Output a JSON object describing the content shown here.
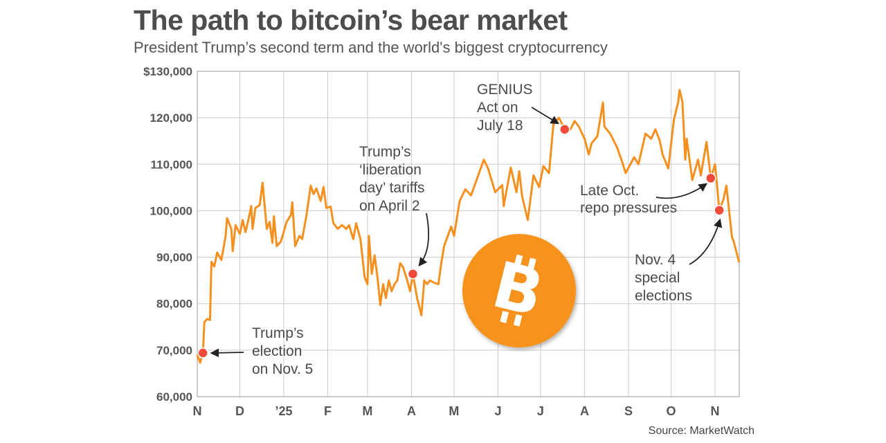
{
  "title": "The path to bitcoin’s bear market",
  "subtitle": "President Trump’s second term and the world's biggest cryptocurrency",
  "source": "Source: MarketWatch",
  "colors": {
    "line": "#f5901e",
    "marker": "#f04a3a",
    "grid": "#cccccc",
    "logo": "#f7931a"
  },
  "logo": {
    "icon": "bitcoin-logo-icon",
    "symbol": "B"
  },
  "chart_data": {
    "type": "line",
    "title": "The path to bitcoin’s bear market",
    "subtitle": "President Trump’s second term and the world's biggest cryptocurrency",
    "xlabel": "",
    "ylabel": "",
    "ylim": [
      60000,
      130000
    ],
    "xlim": [
      "2024-11-01",
      "2025-11-18"
    ],
    "grid": true,
    "y_ticks": [
      "$130,000",
      "120,000",
      "110,000",
      "100,000",
      "90,000",
      "80,000",
      "70,000",
      "60,000"
    ],
    "y_tick_values": [
      130000,
      120000,
      110000,
      100000,
      90000,
      80000,
      70000,
      60000
    ],
    "x_ticks": [
      "N",
      "D",
      "’25",
      "F",
      "M",
      "A",
      "M",
      "J",
      "J",
      "A",
      "S",
      "O",
      "N"
    ],
    "x_tick_dates": [
      "2024-11-01",
      "2024-12-01",
      "2025-01-01",
      "2025-02-01",
      "2025-03-01",
      "2025-04-01",
      "2025-05-01",
      "2025-06-01",
      "2025-07-01",
      "2025-08-01",
      "2025-09-01",
      "2025-10-01",
      "2025-11-01"
    ],
    "series": [
      {
        "points": [
          [
            "2024-11-01",
            69000
          ],
          [
            "2024-11-03",
            67300
          ],
          [
            "2024-11-05",
            69400
          ],
          [
            "2024-11-06",
            76000
          ],
          [
            "2024-11-08",
            76700
          ],
          [
            "2024-11-10",
            76500
          ],
          [
            "2024-11-11",
            89000
          ],
          [
            "2024-11-13",
            88000
          ],
          [
            "2024-11-15",
            91000
          ],
          [
            "2024-11-18",
            89400
          ],
          [
            "2024-11-21",
            94600
          ],
          [
            "2024-11-22",
            98400
          ],
          [
            "2024-11-25",
            96100
          ],
          [
            "2024-11-26",
            91300
          ],
          [
            "2024-11-28",
            96900
          ],
          [
            "2024-12-01",
            95000
          ],
          [
            "2024-12-03",
            98000
          ],
          [
            "2024-12-05",
            95400
          ],
          [
            "2024-12-07",
            98000
          ],
          [
            "2024-12-09",
            101000
          ],
          [
            "2024-12-10",
            96100
          ],
          [
            "2024-12-12",
            100600
          ],
          [
            "2024-12-15",
            101200
          ],
          [
            "2024-12-17",
            106000
          ],
          [
            "2024-12-20",
            96100
          ],
          [
            "2024-12-22",
            97600
          ],
          [
            "2024-12-24",
            93100
          ],
          [
            "2024-12-25",
            98800
          ],
          [
            "2024-12-27",
            92400
          ],
          [
            "2024-12-30",
            93400
          ],
          [
            "2025-01-03",
            97600
          ],
          [
            "2025-01-06",
            99100
          ],
          [
            "2025-01-07",
            101800
          ],
          [
            "2025-01-09",
            92400
          ],
          [
            "2025-01-12",
            94600
          ],
          [
            "2025-01-14",
            93900
          ],
          [
            "2025-01-17",
            99100
          ],
          [
            "2025-01-20",
            105400
          ],
          [
            "2025-01-22",
            103600
          ],
          [
            "2025-01-24",
            104800
          ],
          [
            "2025-01-27",
            102100
          ],
          [
            "2025-01-29",
            105100
          ],
          [
            "2025-01-31",
            100600
          ],
          [
            "2025-02-03",
            100900
          ],
          [
            "2025-02-05",
            97300
          ],
          [
            "2025-02-08",
            96100
          ],
          [
            "2025-02-11",
            96900
          ],
          [
            "2025-02-14",
            96100
          ],
          [
            "2025-02-16",
            96900
          ],
          [
            "2025-02-19",
            93900
          ],
          [
            "2025-02-21",
            97300
          ],
          [
            "2025-02-24",
            93900
          ],
          [
            "2025-02-27",
            85700
          ],
          [
            "2025-03-01",
            84200
          ],
          [
            "2025-03-02",
            94600
          ],
          [
            "2025-03-04",
            86400
          ],
          [
            "2025-03-06",
            90400
          ],
          [
            "2025-03-08",
            85700
          ],
          [
            "2025-03-10",
            79700
          ],
          [
            "2025-03-12",
            84200
          ],
          [
            "2025-03-14",
            81200
          ],
          [
            "2025-03-16",
            85000
          ],
          [
            "2025-03-18",
            82700
          ],
          [
            "2025-03-20",
            84200
          ],
          [
            "2025-03-22",
            85000
          ],
          [
            "2025-03-24",
            88700
          ],
          [
            "2025-03-26",
            87900
          ],
          [
            "2025-03-29",
            85000
          ],
          [
            "2025-03-31",
            82700
          ],
          [
            "2025-04-02",
            86400
          ],
          [
            "2025-04-05",
            81200
          ],
          [
            "2025-04-08",
            77500
          ],
          [
            "2025-04-10",
            85000
          ],
          [
            "2025-04-12",
            84200
          ],
          [
            "2025-04-14",
            85000
          ],
          [
            "2025-04-17",
            84500
          ],
          [
            "2025-04-20",
            84200
          ],
          [
            "2025-04-22",
            88700
          ],
          [
            "2025-04-24",
            92400
          ],
          [
            "2025-04-29",
            96600
          ],
          [
            "2025-05-01",
            94600
          ],
          [
            "2025-05-05",
            102100
          ],
          [
            "2025-05-09",
            104600
          ],
          [
            "2025-05-13",
            103300
          ],
          [
            "2025-05-22",
            111000
          ],
          [
            "2025-05-25",
            109100
          ],
          [
            "2025-05-30",
            104000
          ],
          [
            "2025-06-04",
            105500
          ],
          [
            "2025-06-05",
            101000
          ],
          [
            "2025-06-10",
            109300
          ],
          [
            "2025-06-14",
            104000
          ],
          [
            "2025-06-16",
            108500
          ],
          [
            "2025-06-18",
            103100
          ],
          [
            "2025-06-22",
            98000
          ],
          [
            "2025-06-26",
            107600
          ],
          [
            "2025-06-30",
            105100
          ],
          [
            "2025-07-03",
            109600
          ],
          [
            "2025-07-07",
            108100
          ],
          [
            "2025-07-10",
            118500
          ],
          [
            "2025-07-14",
            120000
          ],
          [
            "2025-07-18",
            117500
          ],
          [
            "2025-07-22",
            117500
          ],
          [
            "2025-07-25",
            119300
          ],
          [
            "2025-07-28",
            118100
          ],
          [
            "2025-08-01",
            115500
          ],
          [
            "2025-08-04",
            112100
          ],
          [
            "2025-08-06",
            114500
          ],
          [
            "2025-08-10",
            116000
          ],
          [
            "2025-08-12",
            119600
          ],
          [
            "2025-08-14",
            123300
          ],
          [
            "2025-08-15",
            118100
          ],
          [
            "2025-08-19",
            116600
          ],
          [
            "2025-08-24",
            113600
          ],
          [
            "2025-08-27",
            111000
          ],
          [
            "2025-08-30",
            108100
          ],
          [
            "2025-09-05",
            111500
          ],
          [
            "2025-09-08",
            110000
          ],
          [
            "2025-09-13",
            116600
          ],
          [
            "2025-09-17",
            115500
          ],
          [
            "2025-09-20",
            117500
          ],
          [
            "2025-09-23",
            115100
          ],
          [
            "2025-09-25",
            112100
          ],
          [
            "2025-09-29",
            109100
          ],
          [
            "2025-10-03",
            119600
          ],
          [
            "2025-10-06",
            123300
          ],
          [
            "2025-10-07",
            126000
          ],
          [
            "2025-10-09",
            123400
          ],
          [
            "2025-10-11",
            111000
          ],
          [
            "2025-10-12",
            115500
          ],
          [
            "2025-10-16",
            106600
          ],
          [
            "2025-10-20",
            111000
          ],
          [
            "2025-10-22",
            107600
          ],
          [
            "2025-10-26",
            114800
          ],
          [
            "2025-10-29",
            107000
          ],
          [
            "2025-11-01",
            110000
          ],
          [
            "2025-11-03",
            103600
          ],
          [
            "2025-11-04",
            100100
          ],
          [
            "2025-11-07",
            102500
          ],
          [
            "2025-11-09",
            105400
          ],
          [
            "2025-11-13",
            94200
          ],
          [
            "2025-11-14",
            93600
          ],
          [
            "2025-11-18",
            88900
          ]
        ]
      }
    ],
    "annotations": [
      {
        "date": "2024-11-05",
        "value": 69400,
        "lines": [
          "Trump’s",
          "election",
          "on Nov. 5"
        ]
      },
      {
        "date": "2025-04-02",
        "value": 86400,
        "lines": [
          "Trump’s",
          "‘liberation",
          "day’ tariffs",
          "on April 2"
        ]
      },
      {
        "date": "2025-07-18",
        "value": 117500,
        "lines": [
          "GENIUS",
          "Act on",
          "July 18"
        ]
      },
      {
        "date": "2025-10-29",
        "value": 107000,
        "lines": [
          "Late Oct.",
          "repo pressures"
        ]
      },
      {
        "date": "2025-11-04",
        "value": 100100,
        "lines": [
          "Nov. 4",
          "special",
          "elections"
        ]
      }
    ]
  }
}
